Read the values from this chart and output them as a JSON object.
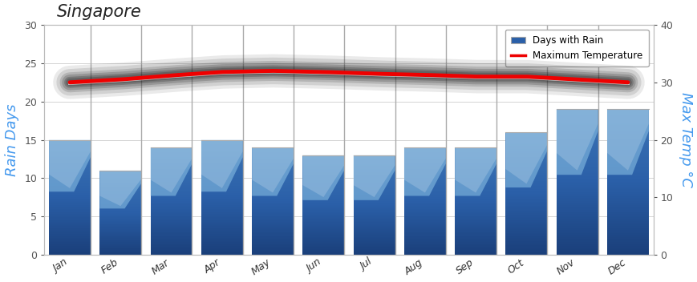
{
  "title": "Singapore",
  "months": [
    "Jan",
    "Feb",
    "Mar",
    "Apr",
    "May",
    "Jun",
    "Jul",
    "Aug",
    "Sep",
    "Oct",
    "Nov",
    "Dec"
  ],
  "rain_days": [
    15,
    11,
    14,
    15,
    14,
    13,
    13,
    14,
    14,
    16,
    19,
    19
  ],
  "max_temp": [
    30.0,
    30.5,
    31.2,
    31.8,
    32.0,
    31.8,
    31.5,
    31.3,
    31.0,
    31.0,
    30.5,
    30.0
  ],
  "rain_ylim": [
    0,
    30
  ],
  "temp_ylim": [
    0,
    40
  ],
  "bar_color_dark": "#1a3f7a",
  "bar_color_mid": "#2a5fa8",
  "bar_color_light": "#6aaad4",
  "bar_color_lighter": "#8ec5e8",
  "temp_line_color": "#ee0000",
  "axis_label_color": "#4499ee",
  "background_color": "#ffffff",
  "ylabel_left": "Rain Days",
  "ylabel_right": "Max Temp °C",
  "legend_labels": [
    "Days with Rain",
    "Maximum Temperature"
  ],
  "yticks_left": [
    0,
    5,
    10,
    15,
    20,
    25,
    30
  ],
  "yticks_right": [
    0,
    10,
    20,
    30,
    40
  ],
  "grid_color": "#cccccc",
  "separator_color": "#aaaaaa"
}
